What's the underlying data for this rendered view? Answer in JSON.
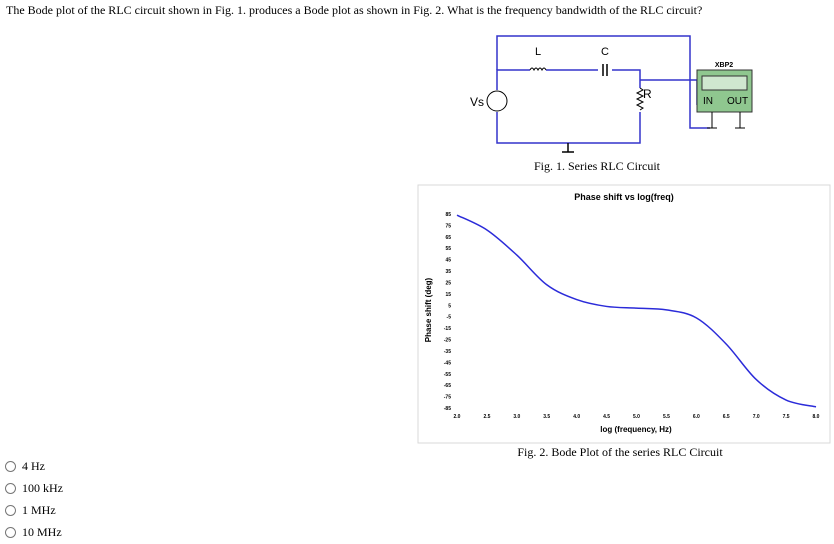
{
  "question": "The Bode plot of the RLC circuit shown in Fig. 1. produces a Bode plot as shown in Fig. 2. What is the frequency bandwidth of the RLC circuit?",
  "figure1": {
    "inductor_label": "L",
    "capacitor_label": "C",
    "source_label": "Vs",
    "resistor_label": "R",
    "plotter_label": "XBP2",
    "in_label": "IN",
    "out_label": "OUT",
    "caption": "Fig. 1. Series RLC Circuit"
  },
  "chart_data": {
    "type": "line",
    "title": "Phase shift vs log(freq)",
    "x_label": "log (frequency, Hz)",
    "y_label": "Phase shift (deg)",
    "x": [
      2.0,
      2.5,
      3.0,
      3.5,
      4.0,
      4.5,
      5.0,
      5.5,
      6.0,
      6.5,
      7.0,
      7.5,
      8.0
    ],
    "series": [
      {
        "color": "#2b2bd9",
        "values": [
          84,
          71,
          49,
          23,
          10,
          4,
          2.5,
          1,
          -6,
          -29,
          -60,
          -78,
          -84
        ]
      }
    ],
    "xlim": [
      2.0,
      8.0
    ],
    "xticks": [
      {
        "value": 2.0,
        "label": "2.0"
      },
      {
        "value": 2.5,
        "label": "2.5"
      },
      {
        "value": 3.0,
        "label": "3.0"
      },
      {
        "value": 3.5,
        "label": "3.5"
      },
      {
        "value": 4.0,
        "label": "4.0"
      },
      {
        "value": 4.5,
        "label": "4.5"
      },
      {
        "value": 5.0,
        "label": "5.0"
      },
      {
        "value": 5.5,
        "label": "5.5"
      },
      {
        "value": 6.0,
        "label": "6.0"
      },
      {
        "value": 6.5,
        "label": "6.5"
      },
      {
        "value": 7.0,
        "label": "7.0"
      },
      {
        "value": 7.5,
        "label": "7.5"
      },
      {
        "value": 8.0,
        "label": "8.0"
      }
    ],
    "ylim": [
      -85,
      85
    ],
    "yticks": [
      85,
      75,
      65,
      55,
      45,
      35,
      25,
      15,
      5,
      -5,
      -15,
      -25,
      -35,
      -45,
      -55,
      -65,
      -75,
      -85
    ]
  },
  "figure2_caption": "Fig. 2. Bode Plot of the series RLC Circuit",
  "options": [
    "4 Hz",
    "100 kHz",
    "1 MHz",
    "10 MHz"
  ]
}
